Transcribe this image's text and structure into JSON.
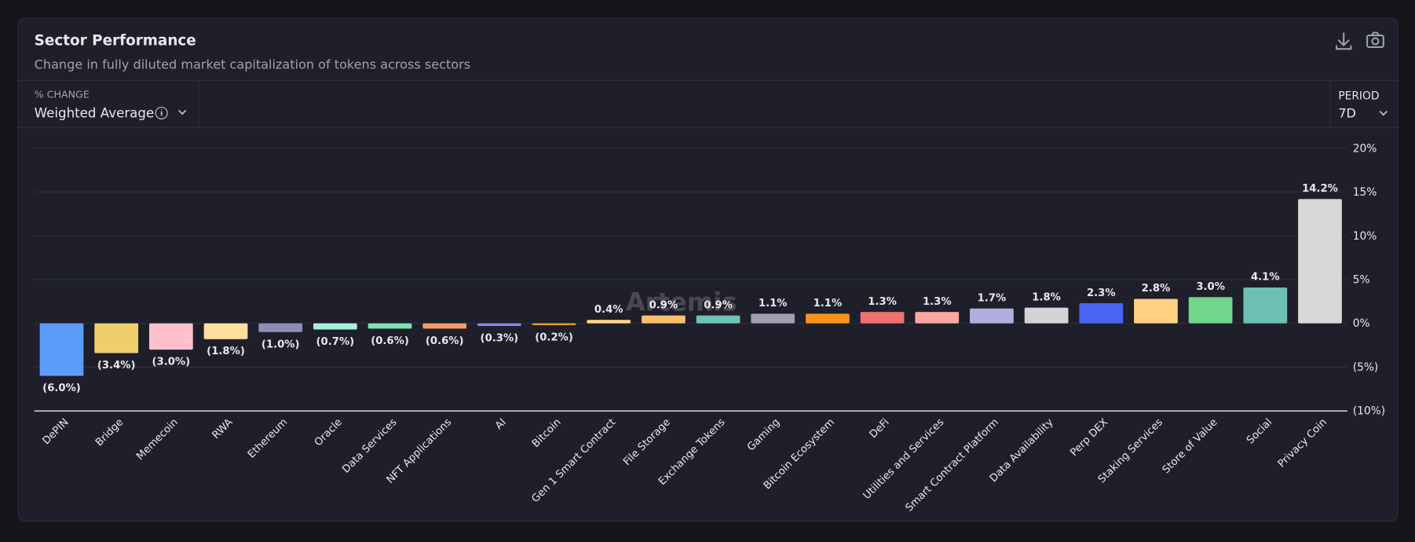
{
  "header": {
    "title": "Sector Performance",
    "subtitle": "Change in fully diluted market capitalization of tokens across sectors"
  },
  "controls": {
    "metric_label": "% CHANGE",
    "metric_value": "Weighted Average",
    "period_label": "PERIOD",
    "period_value": "7D"
  },
  "watermark": "Artemis",
  "chart_data": {
    "type": "bar",
    "categories": [
      "DePIN",
      "Bridge",
      "Memecoin",
      "RWA",
      "Ethereum",
      "Oracle",
      "Data Services",
      "NFT Applications",
      "AI",
      "Bitcoin",
      "Gen 1 Smart Contract",
      "File Storage",
      "Exchange Tokens",
      "Gaming",
      "Bitcoin Ecosystem",
      "DeFi",
      "Utilities and Services",
      "Smart Contract Platform",
      "Data Availability",
      "Perp DEX",
      "Staking Services",
      "Store of Value",
      "Social",
      "Privacy Coin"
    ],
    "values": [
      -6.0,
      -3.4,
      -3.0,
      -1.8,
      -1.0,
      -0.7,
      -0.6,
      -0.6,
      -0.3,
      -0.2,
      0.4,
      0.9,
      0.9,
      1.1,
      1.1,
      1.3,
      1.3,
      1.7,
      1.8,
      2.3,
      2.8,
      3.0,
      4.1,
      14.2
    ],
    "value_labels": [
      "(6.0%)",
      "(3.4%)",
      "(3.0%)",
      "(1.8%)",
      "(1.0%)",
      "(0.7%)",
      "(0.6%)",
      "(0.6%)",
      "(0.3%)",
      "(0.2%)",
      "0.4%",
      "0.9%",
      "0.9%",
      "1.1%",
      "1.1%",
      "1.3%",
      "1.3%",
      "1.7%",
      "1.8%",
      "2.3%",
      "2.8%",
      "3.0%",
      "4.1%",
      "14.2%"
    ],
    "colors": [
      "#5b9cf8",
      "#f0cf6a",
      "#ffc0cb",
      "#ffe0a0",
      "#8d8fb5",
      "#a8f0d8",
      "#7de0b0",
      "#f59a6a",
      "#8a82f0",
      "#f5a030",
      "#ffd88a",
      "#f7c070",
      "#6fc2b8",
      "#a09fb0",
      "#f7931a",
      "#f07070",
      "#f8a8a0",
      "#b0b0e0",
      "#d4d4d4",
      "#4a63f0",
      "#ffd080",
      "#70d68a",
      "#6cbfb2",
      "#d8d8d8"
    ],
    "ylim": [
      -10,
      20
    ],
    "yticks": [
      {
        "value": -10,
        "label": "(10%)"
      },
      {
        "value": -5,
        "label": "(5%)"
      },
      {
        "value": 0,
        "label": "0%"
      },
      {
        "value": 5,
        "label": "5%"
      },
      {
        "value": 10,
        "label": "10%"
      },
      {
        "value": 15,
        "label": "15%"
      },
      {
        "value": 20,
        "label": "20%"
      }
    ],
    "grid": true
  }
}
